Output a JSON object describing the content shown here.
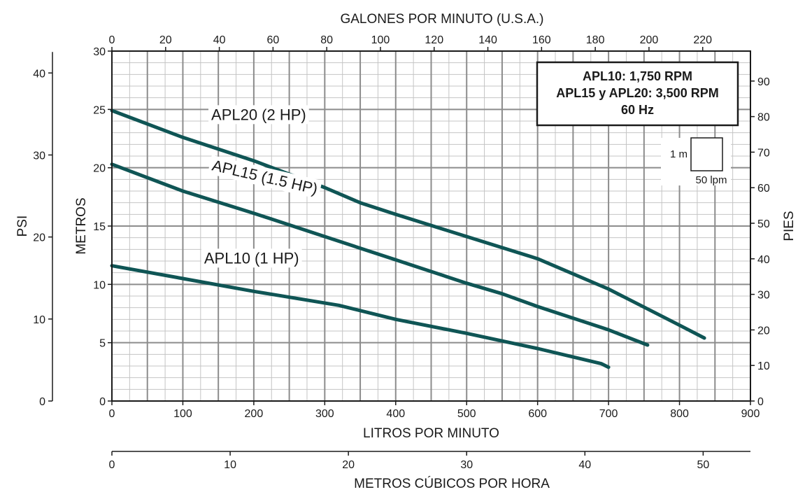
{
  "chart_data": {
    "type": "line",
    "title": "",
    "line_color": "#0f5555",
    "grid": true,
    "xlabel": "LITROS POR MINUTO",
    "xlim": [
      0,
      900
    ],
    "x_ticks": [
      "0",
      "100",
      "200",
      "300",
      "400",
      "500",
      "600",
      "700",
      "800",
      "900"
    ],
    "ylabel": "METROS",
    "ylim": [
      0,
      30
    ],
    "y_ticks": [
      "0",
      "5",
      "10",
      "15",
      "20",
      "25",
      "30"
    ],
    "top_axis": {
      "label": "GALONES POR MINUTO (U.S.A.)",
      "ticks": [
        "0",
        "20",
        "40",
        "60",
        "80",
        "100",
        "120",
        "140",
        "160",
        "180",
        "200",
        "220"
      ],
      "values": [
        0,
        20,
        40,
        60,
        80,
        100,
        120,
        140,
        160,
        180,
        200,
        220
      ],
      "lpm_per_unit": 3.785
    },
    "right_axis": {
      "label": "PIES",
      "ticks": [
        "0",
        "10",
        "20",
        "30",
        "40",
        "50",
        "60",
        "70",
        "80",
        "90"
      ],
      "values": [
        0,
        10,
        20,
        30,
        40,
        50,
        60,
        70,
        80,
        90
      ],
      "m_per_unit": 0.3048
    },
    "psi_axis": {
      "label": "PSI",
      "ticks": [
        "0",
        "10",
        "20",
        "30",
        "40"
      ],
      "values": [
        0,
        10,
        20,
        30,
        40
      ],
      "m_per_unit": 0.7031
    },
    "m3h_axis": {
      "label": "METROS CÚBICOS POR HORA",
      "ticks": [
        "0",
        "10",
        "20",
        "30",
        "40",
        "50"
      ],
      "values": [
        0,
        10,
        20,
        30,
        40,
        50
      ],
      "lpm_per_unit": 16.6667
    },
    "series": [
      {
        "name": "APL20 (2 HP)",
        "label_x": 140,
        "label_y": 24.1,
        "points": [
          [
            0,
            24.9
          ],
          [
            100,
            22.6
          ],
          [
            200,
            20.6
          ],
          [
            300,
            18.3
          ],
          [
            350,
            17.0
          ],
          [
            400,
            16.0
          ],
          [
            500,
            14.1
          ],
          [
            600,
            12.2
          ],
          [
            700,
            9.6
          ],
          [
            800,
            6.5
          ],
          [
            835,
            5.4
          ]
        ]
      },
      {
        "name": "APL15 (1.5 HP)",
        "label_x": 140,
        "label_y": 19.8,
        "rotation": 13,
        "points": [
          [
            0,
            20.3
          ],
          [
            100,
            18.0
          ],
          [
            200,
            16.1
          ],
          [
            300,
            14.1
          ],
          [
            400,
            12.1
          ],
          [
            500,
            10.1
          ],
          [
            550,
            9.2
          ],
          [
            600,
            8.1
          ],
          [
            700,
            6.1
          ],
          [
            755,
            4.8
          ]
        ]
      },
      {
        "name": "APL10 (1 HP)",
        "label_x": 130,
        "label_y": 11.8,
        "points": [
          [
            0,
            11.6
          ],
          [
            100,
            10.5
          ],
          [
            200,
            9.4
          ],
          [
            320,
            8.2
          ],
          [
            400,
            7.0
          ],
          [
            500,
            5.8
          ],
          [
            600,
            4.5
          ],
          [
            690,
            3.2
          ],
          [
            700,
            2.9
          ]
        ]
      }
    ],
    "info_box": {
      "lines": [
        "APL10: 1,750 RPM",
        "APL15 y APL20: 3,500 RPM",
        "60 Hz"
      ],
      "position": "top-right"
    },
    "scale_legend": {
      "height_label": "1 m",
      "width_label": "50 lpm"
    }
  }
}
